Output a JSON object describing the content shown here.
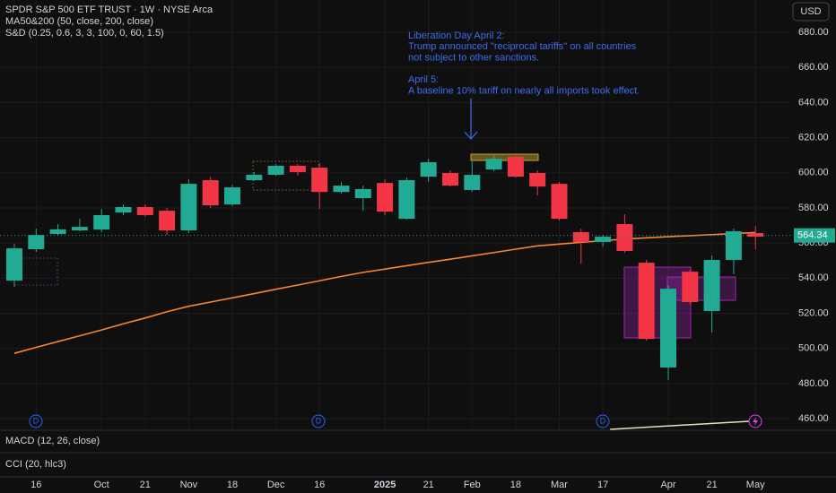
{
  "header": {
    "title": "SPDR S&P 500 ETF TRUST · 1W · NYSE Arca",
    "indicator_ma": "MA50&200 (50, close, 200, close)",
    "indicator_sd": "S&D (0.25, 0.6, 3, 3, 100, 0, 60, 1.5)",
    "currency": "USD"
  },
  "chart_data": {
    "type": "candlestick",
    "categories": [
      null,
      "16",
      null,
      null,
      "Oct",
      null,
      "21",
      null,
      "Nov",
      null,
      "18",
      null,
      "Dec",
      null,
      "16",
      null,
      null,
      "2025",
      null,
      "21",
      null,
      "Feb",
      null,
      "18",
      null,
      "Mar",
      null,
      "17",
      null,
      null,
      "Apr",
      null,
      "21",
      null,
      "May"
    ],
    "open": [
      538.6,
      556.5,
      565.2,
      567.2,
      567.7,
      577.4,
      580.5,
      578.4,
      567.2,
      595.8,
      582.0,
      595.8,
      598.9,
      604.0,
      602.9,
      589.1,
      585.6,
      594.2,
      573.8,
      597.8,
      599.9,
      590.2,
      601.9,
      609.1,
      599.9,
      593.7,
      566.2,
      560.6,
      570.8,
      548.8,
      489.1,
      543.7,
      521.3,
      550.4,
      565.7
    ],
    "high": [
      559.5,
      568.2,
      570.8,
      573.8,
      579.4,
      582.0,
      582.0,
      580.0,
      596.3,
      597.8,
      593.2,
      600.4,
      605.0,
      605.0,
      605.5,
      594.8,
      592.7,
      596.3,
      597.3,
      608.0,
      601.4,
      606.5,
      610.1,
      610.1,
      601.4,
      594.8,
      568.2,
      564.6,
      576.4,
      550.4,
      536.1,
      544.7,
      552.9,
      568.2,
      569.7
    ],
    "low": [
      535.0,
      555.0,
      564.1,
      566.7,
      566.2,
      575.9,
      574.9,
      564.6,
      565.7,
      580.0,
      581.0,
      595.3,
      598.3,
      598.3,
      579.4,
      588.1,
      578.4,
      575.9,
      573.3,
      594.8,
      592.2,
      589.1,
      600.9,
      597.3,
      587.1,
      572.8,
      548.3,
      558.0,
      554.4,
      504.4,
      481.9,
      525.3,
      509.0,
      542.2,
      556.5
    ],
    "close": [
      557.0,
      564.6,
      567.8,
      569.2,
      575.9,
      580.5,
      575.9,
      567.2,
      593.7,
      581.5,
      591.7,
      598.9,
      604.0,
      600.4,
      589.1,
      592.7,
      590.7,
      577.9,
      595.8,
      606.0,
      592.7,
      598.8,
      608.0,
      597.8,
      592.2,
      573.8,
      560.6,
      563.6,
      555.5,
      505.4,
      534.0,
      526.4,
      550.4,
      566.7,
      563.6
    ],
    "up_color": "#22ab94",
    "down_color": "#f23645",
    "ma": {
      "color": "#f7862f",
      "values": [
        497.2,
        500.6,
        503.9,
        507.2,
        510.5,
        514.0,
        517.3,
        520.9,
        524.0,
        526.4,
        528.8,
        531.2,
        533.7,
        536.1,
        538.5,
        541.0,
        543.3,
        545.2,
        547.1,
        549.0,
        550.8,
        552.7,
        554.6,
        556.5,
        558.4,
        559.4,
        560.4,
        561.3,
        562.3,
        563.0,
        563.6,
        564.2,
        564.8,
        565.4,
        566.0
      ]
    },
    "last_price": 564.34,
    "ylim": [
      453.4,
      698.4
    ],
    "yticks": [
      {
        "value": 460,
        "label": "460.00"
      },
      {
        "value": 480,
        "label": "480.00"
      },
      {
        "value": 500,
        "label": "500.00"
      },
      {
        "value": 520,
        "label": "520.00"
      },
      {
        "value": 540,
        "label": "540.00"
      },
      {
        "value": 560,
        "label": "560.00"
      },
      {
        "value": 580,
        "label": "580.00"
      },
      {
        "value": 600,
        "label": "600.00"
      },
      {
        "value": 620,
        "label": "620.00"
      },
      {
        "value": 640,
        "label": "640.00"
      },
      {
        "value": 660,
        "label": "660.00"
      },
      {
        "value": 680,
        "label": "680.00"
      }
    ],
    "grid": true,
    "annotations": [
      "Liberation Day April 2:",
      "Trump announced \"reciprocal tariffs\" on all countries",
      "not subject to other sanctions.",
      "April 5:",
      "A baseline 10% tariff on nearly all imports took effect."
    ]
  },
  "panes": {
    "macd": "MACD (12, 26, close)",
    "cci": "CCI (20, hlc3)"
  },
  "markers": [
    "D",
    "D",
    "D"
  ]
}
